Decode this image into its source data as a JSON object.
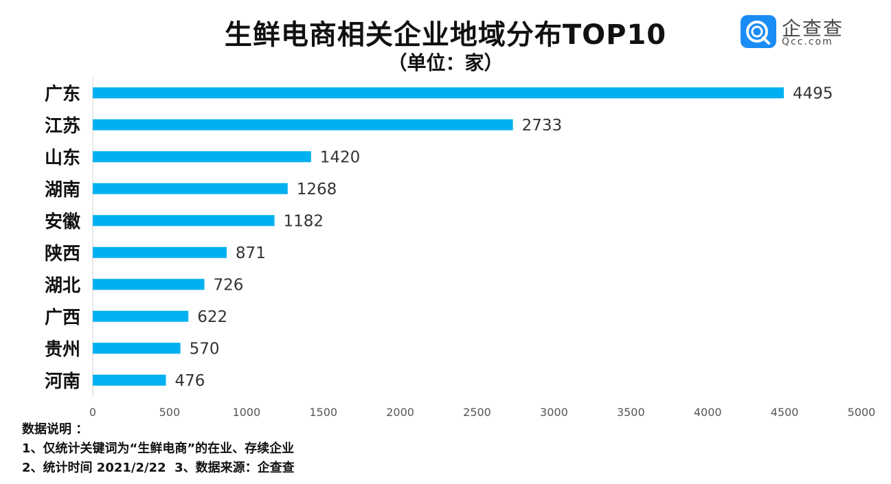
{
  "title": "生鲜电商相关企业地域分布TOP10",
  "subtitle": "（单位：家）",
  "logo": {
    "cn": "企查查",
    "en": "Qcc.com",
    "icon": "qcc-logo-icon",
    "color": "#1a8cf5"
  },
  "chart_data": {
    "type": "bar",
    "orientation": "horizontal",
    "categories": [
      "广东",
      "江苏",
      "山东",
      "湖南",
      "安徽",
      "陕西",
      "湖北",
      "广西",
      "贵州",
      "河南"
    ],
    "values": [
      4495,
      2733,
      1420,
      1268,
      1182,
      871,
      726,
      622,
      570,
      476
    ],
    "xlim": [
      0,
      5000
    ],
    "xticks": [
      0,
      500,
      1000,
      1500,
      2000,
      2500,
      3000,
      3500,
      4000,
      4500,
      5000
    ],
    "grid": false,
    "bar_color": "#00b0f0"
  },
  "notes": {
    "heading": "数据说明 ：",
    "line1": "1、仅统计关键词为“生鲜电商”的在业、存续企业",
    "line2": "2、统计时间 2021/2/22  3、数据来源：企查查"
  }
}
